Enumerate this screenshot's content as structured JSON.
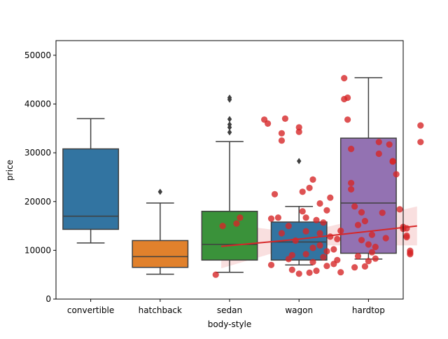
{
  "chart_data": {
    "type": "box",
    "xlabel": "body-style",
    "ylabel": "price",
    "ylim": [
      0,
      53000
    ],
    "yticks": [
      0,
      10000,
      20000,
      30000,
      40000,
      50000
    ],
    "categories": [
      "convertible",
      "hatchback",
      "sedan",
      "wagon",
      "hardtop"
    ],
    "boxes": [
      {
        "category": "convertible",
        "color": "#3274a1",
        "whisker_low": 11500,
        "q1": 14300,
        "median": 17000,
        "q3": 30800,
        "whisker_high": 37000,
        "outliers": []
      },
      {
        "category": "hatchback",
        "color": "#e1812c",
        "whisker_low": 5100,
        "q1": 6500,
        "median": 8700,
        "q3": 12000,
        "whisker_high": 19700,
        "outliers": [
          22000
        ]
      },
      {
        "category": "sedan",
        "color": "#3a923a",
        "whisker_low": 5500,
        "q1": 8000,
        "median": 11200,
        "q3": 18000,
        "whisker_high": 32300,
        "outliers": [
          34200,
          35200,
          35800,
          36900,
          40900,
          41300
        ]
      },
      {
        "category": "wagon",
        "color": "#3274a1",
        "whisker_low": 7000,
        "q1": 8000,
        "median": 11700,
        "q3": 15800,
        "whisker_high": 19000,
        "outliers": [
          28300
        ]
      },
      {
        "category": "hardtop",
        "color": "#9372b2",
        "whisker_low": 8200,
        "q1": 9400,
        "median": 19700,
        "q3": 33000,
        "whisker_high": 45400,
        "outliers": []
      }
    ],
    "scatter_series": {
      "color": "#d62728",
      "points": [
        [
          1.8,
          5000
        ],
        [
          1.9,
          15000
        ],
        [
          2.1,
          15500
        ],
        [
          2.15,
          16700
        ],
        [
          2.5,
          36800
        ],
        [
          2.55,
          36000
        ],
        [
          2.6,
          7000
        ],
        [
          2.6,
          16500
        ],
        [
          2.65,
          21500
        ],
        [
          2.7,
          16700
        ],
        [
          2.75,
          34000
        ],
        [
          2.75,
          32500
        ],
        [
          2.75,
          13500
        ],
        [
          2.8,
          37000
        ],
        [
          2.85,
          8200
        ],
        [
          2.85,
          15000
        ],
        [
          2.9,
          6000
        ],
        [
          2.9,
          9000
        ],
        [
          2.95,
          12000
        ],
        [
          3.0,
          5200
        ],
        [
          3.0,
          35200
        ],
        [
          3.0,
          34300
        ],
        [
          3.05,
          18000
        ],
        [
          3.05,
          22000
        ],
        [
          3.1,
          9200
        ],
        [
          3.1,
          13900
        ],
        [
          3.1,
          16700
        ],
        [
          3.15,
          22800
        ],
        [
          3.15,
          5400
        ],
        [
          3.2,
          24500
        ],
        [
          3.2,
          10500
        ],
        [
          3.2,
          7600
        ],
        [
          3.25,
          16200
        ],
        [
          3.25,
          5800
        ],
        [
          3.3,
          13500
        ],
        [
          3.3,
          11000
        ],
        [
          3.3,
          19600
        ],
        [
          3.35,
          15700
        ],
        [
          3.35,
          8600
        ],
        [
          3.4,
          18200
        ],
        [
          3.4,
          6800
        ],
        [
          3.4,
          9800
        ],
        [
          3.45,
          12800
        ],
        [
          3.45,
          20800
        ],
        [
          3.5,
          7200
        ],
        [
          3.5,
          10200
        ],
        [
          3.55,
          8000
        ],
        [
          3.55,
          12300
        ],
        [
          3.6,
          14000
        ],
        [
          3.6,
          5500
        ],
        [
          3.65,
          45300
        ],
        [
          3.65,
          41000
        ],
        [
          3.7,
          41300
        ],
        [
          3.7,
          36800
        ],
        [
          3.75,
          30800
        ],
        [
          3.75,
          23800
        ],
        [
          3.75,
          22500
        ],
        [
          3.8,
          19000
        ],
        [
          3.8,
          6500
        ],
        [
          3.85,
          8800
        ],
        [
          3.85,
          15200
        ],
        [
          3.9,
          17800
        ],
        [
          3.9,
          12100
        ],
        [
          3.95,
          16000
        ],
        [
          3.95,
          6700
        ],
        [
          4.0,
          7800
        ],
        [
          4.0,
          11200
        ],
        [
          4.05,
          9600
        ],
        [
          4.05,
          13200
        ],
        [
          4.1,
          8300
        ],
        [
          4.1,
          10700
        ],
        [
          4.15,
          32200
        ],
        [
          4.15,
          29800
        ],
        [
          4.2,
          17700
        ],
        [
          4.25,
          12500
        ],
        [
          4.3,
          31700
        ],
        [
          4.35,
          28300
        ],
        [
          4.35,
          28200
        ],
        [
          4.4,
          25600
        ],
        [
          4.45,
          18400
        ],
        [
          4.5,
          14800
        ],
        [
          4.5,
          14400
        ],
        [
          4.55,
          12700
        ],
        [
          4.55,
          13000
        ],
        [
          4.6,
          9500
        ],
        [
          4.6,
          9900
        ],
        [
          4.6,
          9200
        ],
        [
          4.75,
          35600
        ],
        [
          4.75,
          32200
        ],
        [
          4.55,
          14500
        ]
      ]
    },
    "regression": {
      "color": "#d62728",
      "line": [
        [
          1.88,
          10800
        ],
        [
          3.0,
          12300
        ],
        [
          4.7,
          15000
        ]
      ],
      "band_upper": [
        [
          1.88,
          15600
        ],
        [
          3.0,
          13500
        ],
        [
          4.7,
          19000
        ]
      ],
      "band_lower": [
        [
          1.88,
          6300
        ],
        [
          3.0,
          11000
        ],
        [
          4.7,
          11000
        ]
      ]
    }
  }
}
